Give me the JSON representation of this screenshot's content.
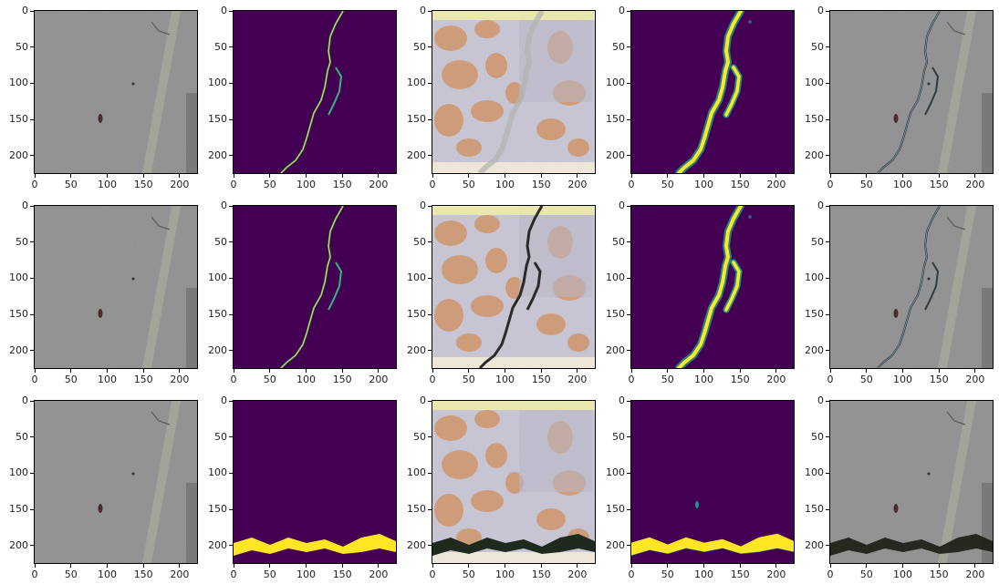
{
  "figure": {
    "rows": 3,
    "cols": 5,
    "x_ticks": [
      "0",
      "50",
      "100",
      "150",
      "200"
    ],
    "y_ticks": [
      "0",
      "50",
      "100",
      "150",
      "200"
    ],
    "axis_range": [
      0,
      224
    ],
    "colors": {
      "concrete": "#8f8f8f",
      "mask_background": "#440154",
      "mask_crack": "#fde725",
      "mask_edge": "#35b779",
      "prediction_mid": "#21918c"
    },
    "panels": [
      {
        "row": 0,
        "col": 0,
        "kind": "concrete-photo"
      },
      {
        "row": 0,
        "col": 1,
        "kind": "thin-crack-mask"
      },
      {
        "row": 0,
        "col": 2,
        "kind": "textured-generated"
      },
      {
        "row": 0,
        "col": 3,
        "kind": "crack-prediction"
      },
      {
        "row": 0,
        "col": 4,
        "kind": "concrete-with-crack"
      },
      {
        "row": 1,
        "col": 0,
        "kind": "concrete-photo"
      },
      {
        "row": 1,
        "col": 1,
        "kind": "thin-crack-mask"
      },
      {
        "row": 1,
        "col": 2,
        "kind": "textured-generated-dark"
      },
      {
        "row": 1,
        "col": 3,
        "kind": "crack-prediction"
      },
      {
        "row": 1,
        "col": 4,
        "kind": "concrete-with-crack"
      },
      {
        "row": 2,
        "col": 0,
        "kind": "concrete-photo"
      },
      {
        "row": 2,
        "col": 1,
        "kind": "band-mask"
      },
      {
        "row": 2,
        "col": 2,
        "kind": "textured-generated-band"
      },
      {
        "row": 2,
        "col": 3,
        "kind": "band-prediction"
      },
      {
        "row": 2,
        "col": 4,
        "kind": "concrete-with-band"
      }
    ]
  }
}
